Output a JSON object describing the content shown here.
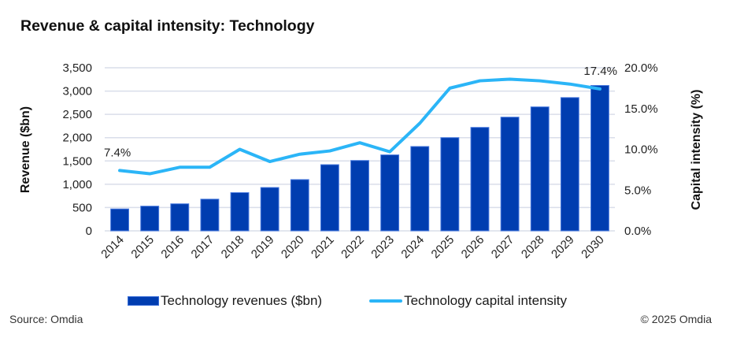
{
  "chart_data": {
    "type": "bar",
    "title": "Revenue & capital intensity: Technology",
    "categories": [
      "2014",
      "2015",
      "2016",
      "2017",
      "2018",
      "2019",
      "2020",
      "2021",
      "2022",
      "2023",
      "2024",
      "2025",
      "2026",
      "2027",
      "2028",
      "2029",
      "2030"
    ],
    "series": [
      {
        "name": "Technology revenues ($bn)",
        "type": "bar",
        "axis": "left",
        "color": "#003DB0",
        "values": [
          470,
          530,
          580,
          680,
          820,
          930,
          1100,
          1420,
          1510,
          1630,
          1810,
          2000,
          2220,
          2440,
          2660,
          2860,
          3120
        ]
      },
      {
        "name": "Technology capital intensity",
        "type": "line",
        "axis": "right",
        "color": "#2BB5F7",
        "values": [
          7.4,
          7.0,
          7.8,
          7.8,
          10.0,
          8.5,
          9.4,
          9.8,
          10.8,
          9.7,
          13.2,
          17.5,
          18.4,
          18.6,
          18.4,
          18.0,
          17.4
        ]
      }
    ],
    "ylabel_left": "Revenue ($bn)",
    "ylabel_right": "Capital intensity (%)",
    "ylim_left": [
      0,
      3500
    ],
    "ylim_right": [
      0,
      20
    ],
    "yticks_left": [
      "0",
      "500",
      "1,000",
      "1,500",
      "2,000",
      "2,500",
      "3,000",
      "3,500"
    ],
    "yticks_right": [
      "0.0%",
      "5.0%",
      "10.0%",
      "15.0%",
      "20.0%"
    ],
    "data_labels": [
      {
        "series": "Technology capital intensity",
        "category": "2014",
        "text": "7.4%"
      },
      {
        "series": "Technology capital intensity",
        "category": "2030",
        "text": "17.4%"
      }
    ],
    "grid": true,
    "legend": "bottom",
    "xlabel": ""
  },
  "title": "Revenue & capital intensity: Technology",
  "legend": {
    "bar_label": "Technology revenues ($bn)",
    "line_label": "Technology capital intensity"
  },
  "footer": {
    "source": "Source: Omdia",
    "copyright": "© 2025 Omdia"
  }
}
